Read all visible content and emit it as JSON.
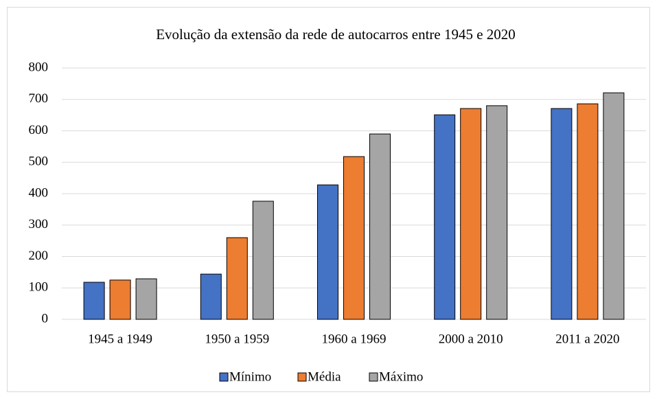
{
  "chart_data": {
    "type": "bar",
    "title": "Evolução da extensão da rede de autocarros entre 1945 e 2020",
    "categories": [
      "1945 a 1949",
      "1950 a 1959",
      "1960 a 1969",
      "2000 a 2010",
      "2011 a 2020"
    ],
    "series": [
      {
        "name": "Mínimo",
        "color": "#4472c4",
        "values": [
          118,
          144,
          428,
          651,
          671
        ]
      },
      {
        "name": "Média",
        "color": "#ed7d31",
        "values": [
          125,
          260,
          518,
          671,
          686
        ]
      },
      {
        "name": "Máximo",
        "color": "#a5a5a5",
        "values": [
          129,
          376,
          590,
          680,
          721
        ]
      }
    ],
    "ylim": [
      0,
      800
    ],
    "yticks": [
      0,
      100,
      200,
      300,
      400,
      500,
      600,
      700,
      800
    ],
    "grid": true,
    "legend": "bottom"
  }
}
